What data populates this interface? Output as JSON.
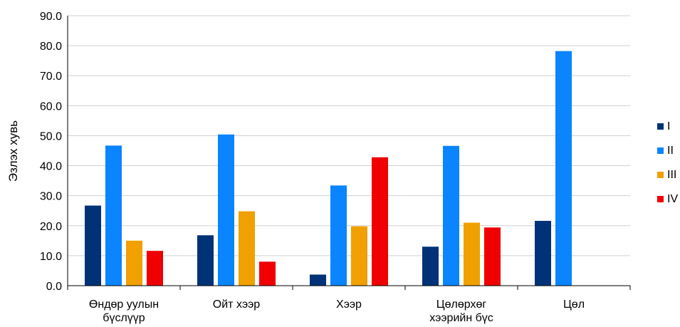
{
  "chart_data": {
    "type": "bar",
    "ylabel": "Эзлэх хувь",
    "xlabel": "",
    "ylim": [
      0,
      90
    ],
    "ytick_step": 10,
    "ytick_format": "0.0",
    "grid": true,
    "legend_position": "right",
    "categories": [
      [
        "Өндөр уулын",
        "бүслүүр"
      ],
      [
        "Ойт хээр"
      ],
      [
        "Хээр"
      ],
      [
        "Цөлөрхөг",
        "хээрийн бүс"
      ],
      [
        "Цөл"
      ]
    ],
    "series": [
      {
        "name": "I",
        "color": "#003278",
        "values": [
          26.7,
          16.8,
          3.7,
          13.0,
          21.6
        ]
      },
      {
        "name": "II",
        "color": "#0A84FF",
        "values": [
          46.7,
          50.4,
          33.4,
          46.6,
          78.2
        ]
      },
      {
        "name": "III",
        "color": "#F0A000",
        "values": [
          15.0,
          24.8,
          19.8,
          21.0,
          null
        ]
      },
      {
        "name": "IV",
        "color": "#F00000",
        "values": [
          11.6,
          8.0,
          42.8,
          19.4,
          null
        ]
      }
    ]
  }
}
